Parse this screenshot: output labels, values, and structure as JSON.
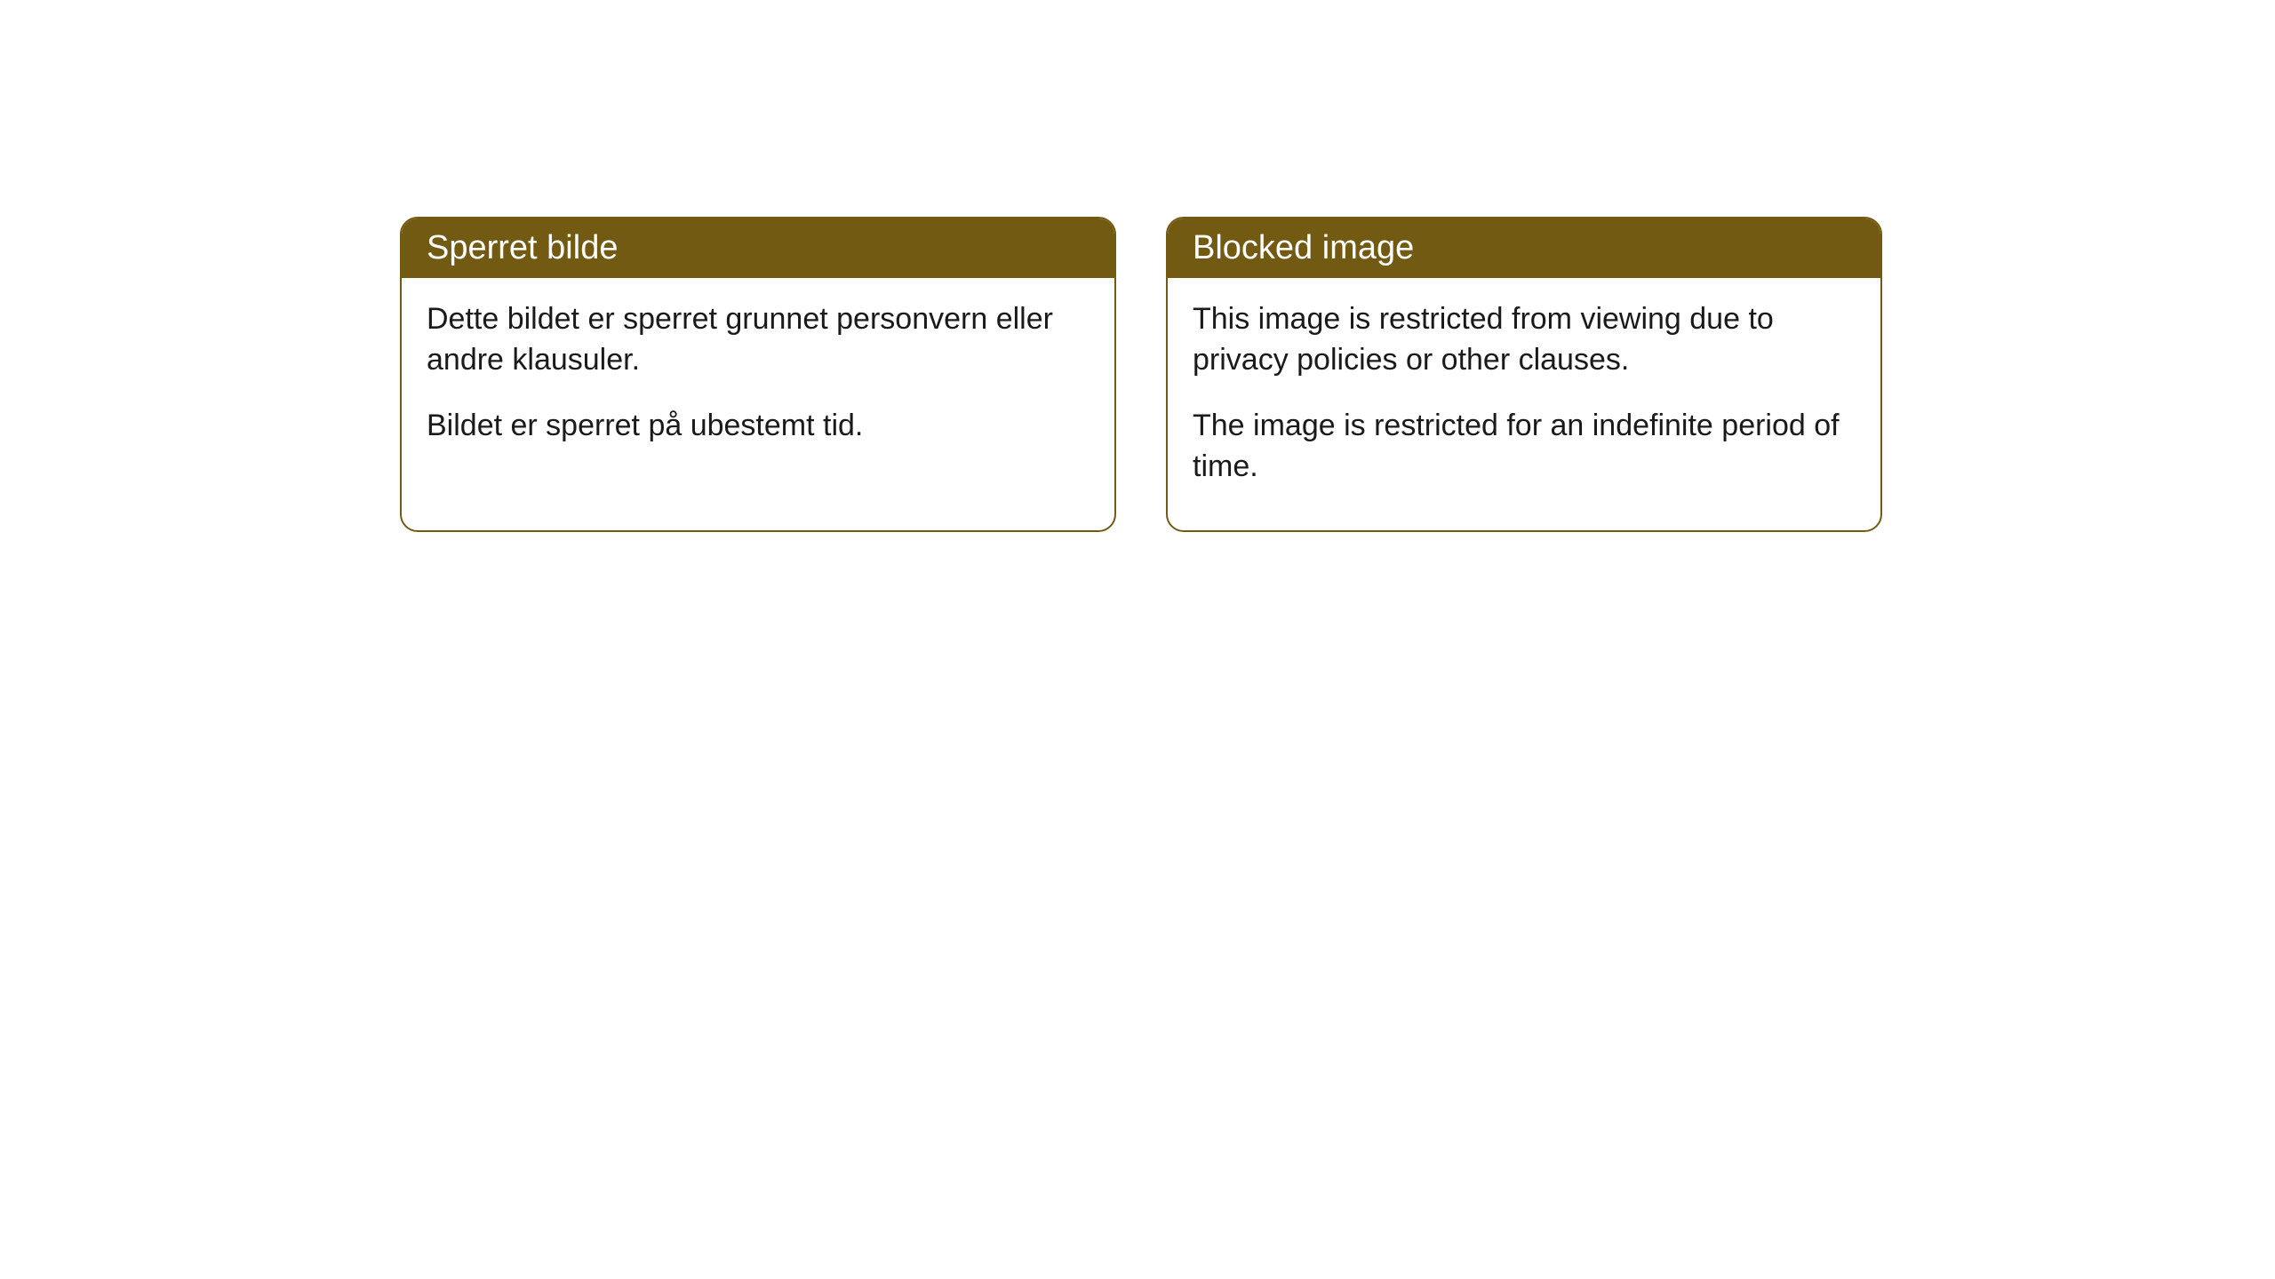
{
  "cards": [
    {
      "title": "Sperret bilde",
      "paragraph1": "Dette bildet er sperret grunnet personvern eller andre klausuler.",
      "paragraph2": "Bildet er sperret på ubestemt tid."
    },
    {
      "title": "Blocked image",
      "paragraph1": "This image is restricted from viewing due to privacy policies or other clauses.",
      "paragraph2": "The image is restricted for an indefinite period of time."
    }
  ],
  "style": {
    "header_bg_color": "#735a13",
    "header_text_color": "#ffffff",
    "border_color": "#735a13",
    "body_bg_color": "#ffffff",
    "body_text_color": "#1a1a1a",
    "border_radius": 20,
    "header_fontsize": 38,
    "body_fontsize": 34
  }
}
